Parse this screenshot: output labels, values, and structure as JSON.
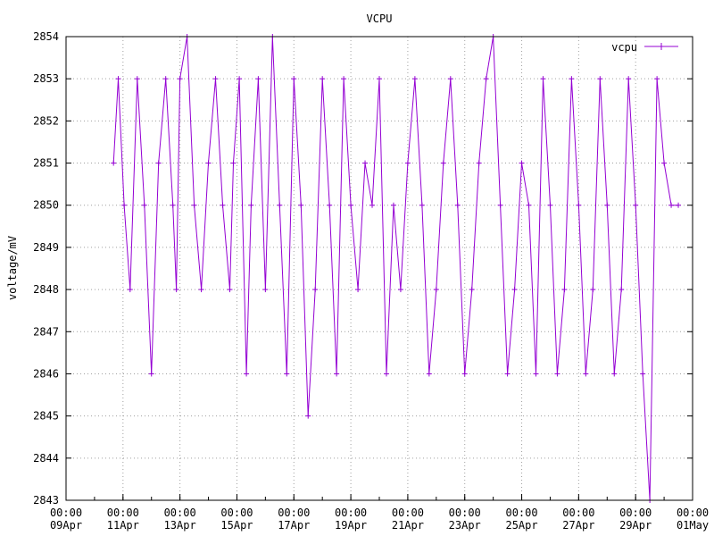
{
  "chart_data": {
    "type": "line",
    "title": "VCPU",
    "xlabel": "",
    "ylabel": "voltage/mV",
    "ylim": [
      2843,
      2854
    ],
    "xlim": [
      "2024-04-09T00:00",
      "2024-05-01T00:00"
    ],
    "yticks": [
      "2843",
      "2844",
      "2845",
      "2846",
      "2847",
      "2848",
      "2849",
      "2850",
      "2851",
      "2852",
      "2853",
      "2854"
    ],
    "xticks": [
      {
        "time": "00:00",
        "date": "09Apr"
      },
      {
        "time": "00:00",
        "date": "11Apr"
      },
      {
        "time": "00:00",
        "date": "13Apr"
      },
      {
        "time": "00:00",
        "date": "15Apr"
      },
      {
        "time": "00:00",
        "date": "17Apr"
      },
      {
        "time": "00:00",
        "date": "19Apr"
      },
      {
        "time": "00:00",
        "date": "21Apr"
      },
      {
        "time": "00:00",
        "date": "23Apr"
      },
      {
        "time": "00:00",
        "date": "25Apr"
      },
      {
        "time": "00:00",
        "date": "27Apr"
      },
      {
        "time": "00:00",
        "date": "29Apr"
      },
      {
        "time": "00:00",
        "date": "01May"
      }
    ],
    "grid": true,
    "legend": "top-right",
    "series": [
      {
        "name": "vcpu",
        "color": "#9400d3",
        "marker": "plus",
        "x": [
          "2024-04-10T16:00",
          "2024-04-10T20:00",
          "2024-04-11T01:00",
          "2024-04-11T06:00",
          "2024-04-11T12:00",
          "2024-04-11T18:00",
          "2024-04-12T00:00",
          "2024-04-12T06:00",
          "2024-04-12T12:00",
          "2024-04-12T18:00",
          "2024-04-12T21:00",
          "2024-04-13T00:00",
          "2024-04-13T06:00",
          "2024-04-13T12:00",
          "2024-04-13T18:00",
          "2024-04-14T00:00",
          "2024-04-14T06:00",
          "2024-04-14T12:00",
          "2024-04-14T18:00",
          "2024-04-14T21:00",
          "2024-04-15T02:00",
          "2024-04-15T08:00",
          "2024-04-15T12:00",
          "2024-04-15T18:00",
          "2024-04-16T00:00",
          "2024-04-16T06:00",
          "2024-04-16T12:00",
          "2024-04-16T18:00",
          "2024-04-17T00:00",
          "2024-04-17T06:00",
          "2024-04-17T12:00",
          "2024-04-17T18:00",
          "2024-04-18T00:00",
          "2024-04-18T06:00",
          "2024-04-18T12:00",
          "2024-04-18T18:00",
          "2024-04-19T00:00",
          "2024-04-19T06:00",
          "2024-04-19T12:00",
          "2024-04-19T18:00",
          "2024-04-20T00:00",
          "2024-04-20T06:00",
          "2024-04-20T12:00",
          "2024-04-20T18:00",
          "2024-04-21T00:00",
          "2024-04-21T06:00",
          "2024-04-21T12:00",
          "2024-04-21T18:00",
          "2024-04-22T00:00",
          "2024-04-22T06:00",
          "2024-04-22T12:00",
          "2024-04-22T18:00",
          "2024-04-23T00:00",
          "2024-04-23T06:00",
          "2024-04-23T12:00",
          "2024-04-23T18:00",
          "2024-04-24T00:00",
          "2024-04-24T06:00",
          "2024-04-24T12:00",
          "2024-04-24T18:00",
          "2024-04-25T00:00",
          "2024-04-25T06:00",
          "2024-04-25T12:00",
          "2024-04-25T18:00",
          "2024-04-26T00:00",
          "2024-04-26T06:00",
          "2024-04-26T12:00",
          "2024-04-26T18:00",
          "2024-04-27T00:00",
          "2024-04-27T06:00",
          "2024-04-27T12:00",
          "2024-04-27T18:00",
          "2024-04-28T00:00",
          "2024-04-28T06:00",
          "2024-04-28T12:00",
          "2024-04-28T18:00",
          "2024-04-29T00:00",
          "2024-04-29T06:00",
          "2024-04-29T12:00",
          "2024-04-29T18:00",
          "2024-04-30T00:00",
          "2024-04-30T06:00",
          "2024-04-30T12:00"
        ],
        "y": [
          2851,
          2853,
          2850,
          2848,
          2853,
          2850,
          2846,
          2851,
          2853,
          2850,
          2848,
          2853,
          2854,
          2850,
          2848,
          2851,
          2853,
          2850,
          2848,
          2851,
          2853,
          2846,
          2850,
          2853,
          2848,
          2854,
          2850,
          2846,
          2853,
          2850,
          2845,
          2848,
          2853,
          2850,
          2846,
          2853,
          2850,
          2848,
          2851,
          2850,
          2853,
          2846,
          2850,
          2848,
          2851,
          2853,
          2850,
          2846,
          2848,
          2851,
          2853,
          2850,
          2846,
          2848,
          2851,
          2853,
          2854,
          2850,
          2846,
          2848,
          2851,
          2850,
          2846,
          2853,
          2850,
          2846,
          2848,
          2853,
          2850,
          2846,
          2848,
          2853,
          2850,
          2846,
          2848,
          2853,
          2850,
          2846,
          2843,
          2853,
          2851,
          2850,
          2850
        ]
      }
    ]
  }
}
